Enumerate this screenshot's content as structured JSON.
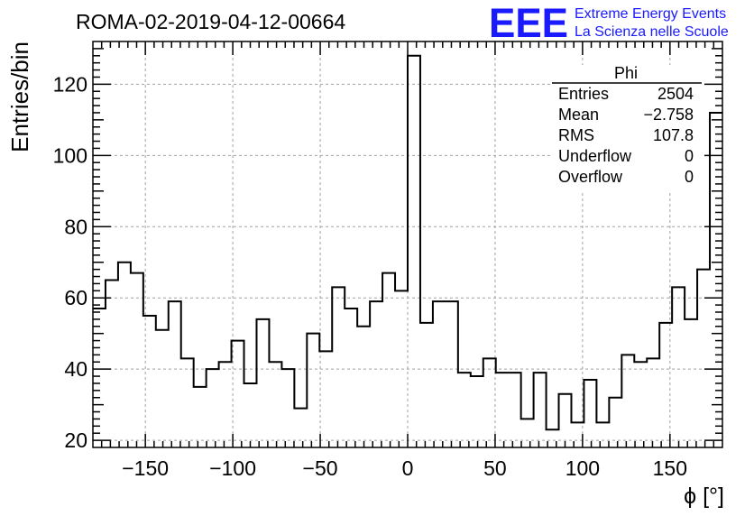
{
  "title": "ROMA-02-2019-04-12-00664",
  "logo": {
    "text": "EEE",
    "line1": "Extreme Energy Events",
    "line2": "La Scienza nelle Scuole",
    "color": "#1a1aff"
  },
  "stats": {
    "name": "Phi",
    "rows": [
      {
        "label": "Entries",
        "value": "2504"
      },
      {
        "label": "Mean",
        "value": "−2.758"
      },
      {
        "label": "RMS",
        "value": "107.8"
      },
      {
        "label": "Underflow",
        "value": "0"
      },
      {
        "label": "Overflow",
        "value": "0"
      }
    ]
  },
  "chart_data": {
    "type": "bar",
    "style": "step-histogram",
    "xlabel": "ϕ [°]",
    "ylabel": "Entries/bin",
    "xlim": [
      -180,
      180
    ],
    "ylim": [
      18,
      132
    ],
    "bin_width": 7.2,
    "grid": true,
    "x_ticks": [
      -150,
      -100,
      -50,
      0,
      50,
      100,
      150
    ],
    "x_tick_labels": [
      "−150",
      "−100",
      "−50",
      "0",
      "50",
      "100",
      "150"
    ],
    "y_ticks": [
      20,
      40,
      60,
      80,
      100,
      120
    ],
    "y_tick_labels": [
      "20",
      "40",
      "60",
      "80",
      "100",
      "120"
    ],
    "values": [
      57,
      65,
      70,
      67,
      55,
      51,
      59,
      43,
      35,
      40,
      42,
      48,
      36,
      54,
      42,
      40,
      29,
      50,
      45,
      63,
      57,
      52,
      59,
      67,
      62,
      128,
      53,
      59,
      59,
      39,
      38,
      43,
      39,
      39,
      26,
      39,
      23,
      33,
      25,
      37,
      25,
      32,
      44,
      42,
      43,
      53,
      63,
      54,
      68,
      112
    ]
  }
}
